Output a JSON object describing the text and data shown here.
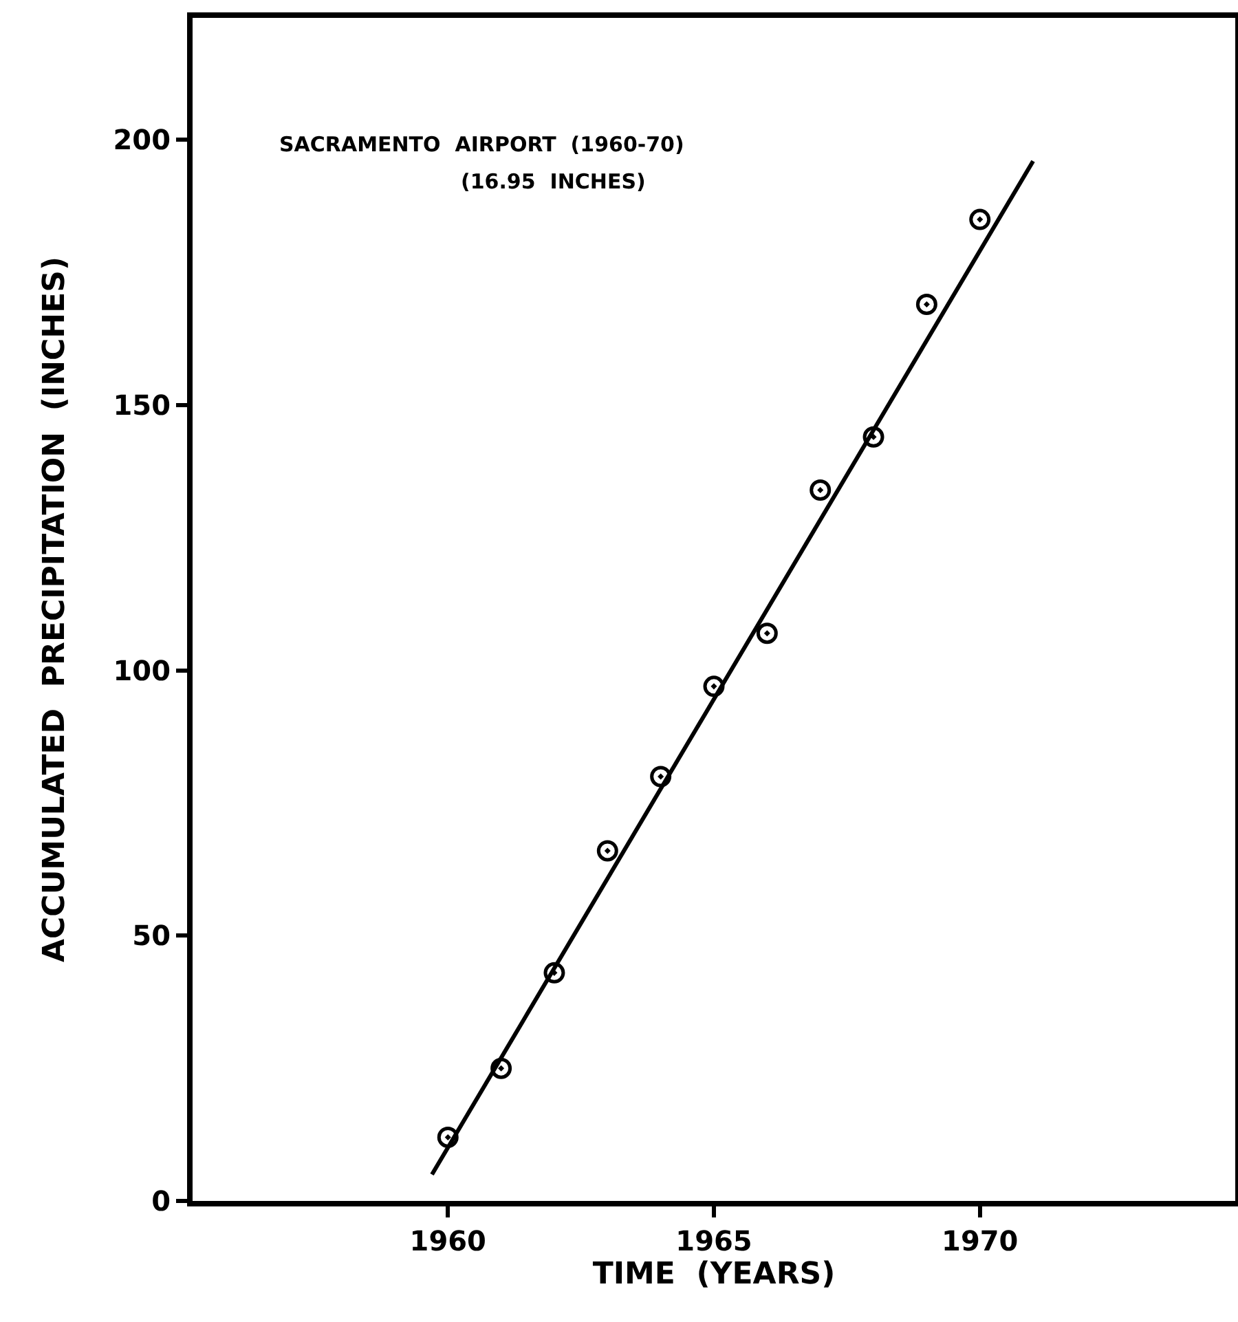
{
  "chart_data": {
    "type": "scatter",
    "xlabel": "TIME  (YEARS)",
    "ylabel": "ACCUMULATED  PRECIPITATION  (INCHES)",
    "annotations": [
      "SACRAMENTO  AIRPORT  (1960-70)",
      "(16.95  INCHES)"
    ],
    "x": [
      1960,
      1961,
      1962,
      1963,
      1964,
      1965,
      1966,
      1967,
      1968,
      1969,
      1970
    ],
    "series": [
      {
        "color": "#000000",
        "marker": "circle",
        "values": [
          12,
          25,
          43,
          66,
          80,
          97,
          107,
          134,
          144,
          169,
          185
        ]
      },
      {
        "type": "line",
        "color": "#000000",
        "line_style": "solid",
        "x": [
          1959.7,
          1971.0
        ],
        "values": [
          5,
          196
        ]
      }
    ],
    "xlim": [
      1955.2,
      1974.8
    ],
    "xticks": [
      1960,
      1965,
      1970
    ],
    "ylim": [
      0,
      223
    ],
    "yticks": [
      0,
      50,
      100,
      150,
      200
    ]
  }
}
